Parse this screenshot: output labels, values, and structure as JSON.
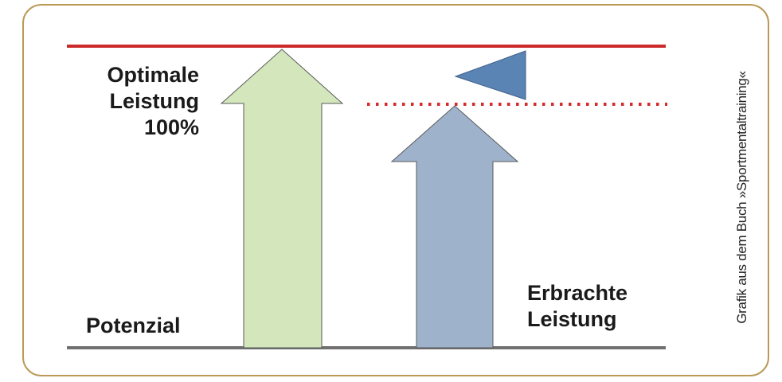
{
  "labels": {
    "optimal_line1": "Optimale",
    "optimal_line2": "Leistung",
    "optimal_line3": "100%",
    "potential": "Potenzial",
    "achieved_line1": "Erbrachte",
    "achieved_line2": "Leistung"
  },
  "credit": "Grafik aus dem Buch »Sportmentaltraining«",
  "colors": {
    "frame_border": "#b99b57",
    "optimal_line": "#cc2a2a",
    "dotted_line": "#d42a2a",
    "baseline": "#707070",
    "potential_arrow_fill": "#d3e6bc",
    "achieved_arrow_fill": "#9fb2cc",
    "arrow_stroke": "#5a5a5a",
    "pointer_triangle_fill": "#5a84b4",
    "pointer_triangle_stroke": "#3e5f8a"
  },
  "icons": {
    "potential": "up-arrow-icon",
    "achieved": "up-arrow-icon",
    "gap_pointer": "left-triangle-icon"
  }
}
